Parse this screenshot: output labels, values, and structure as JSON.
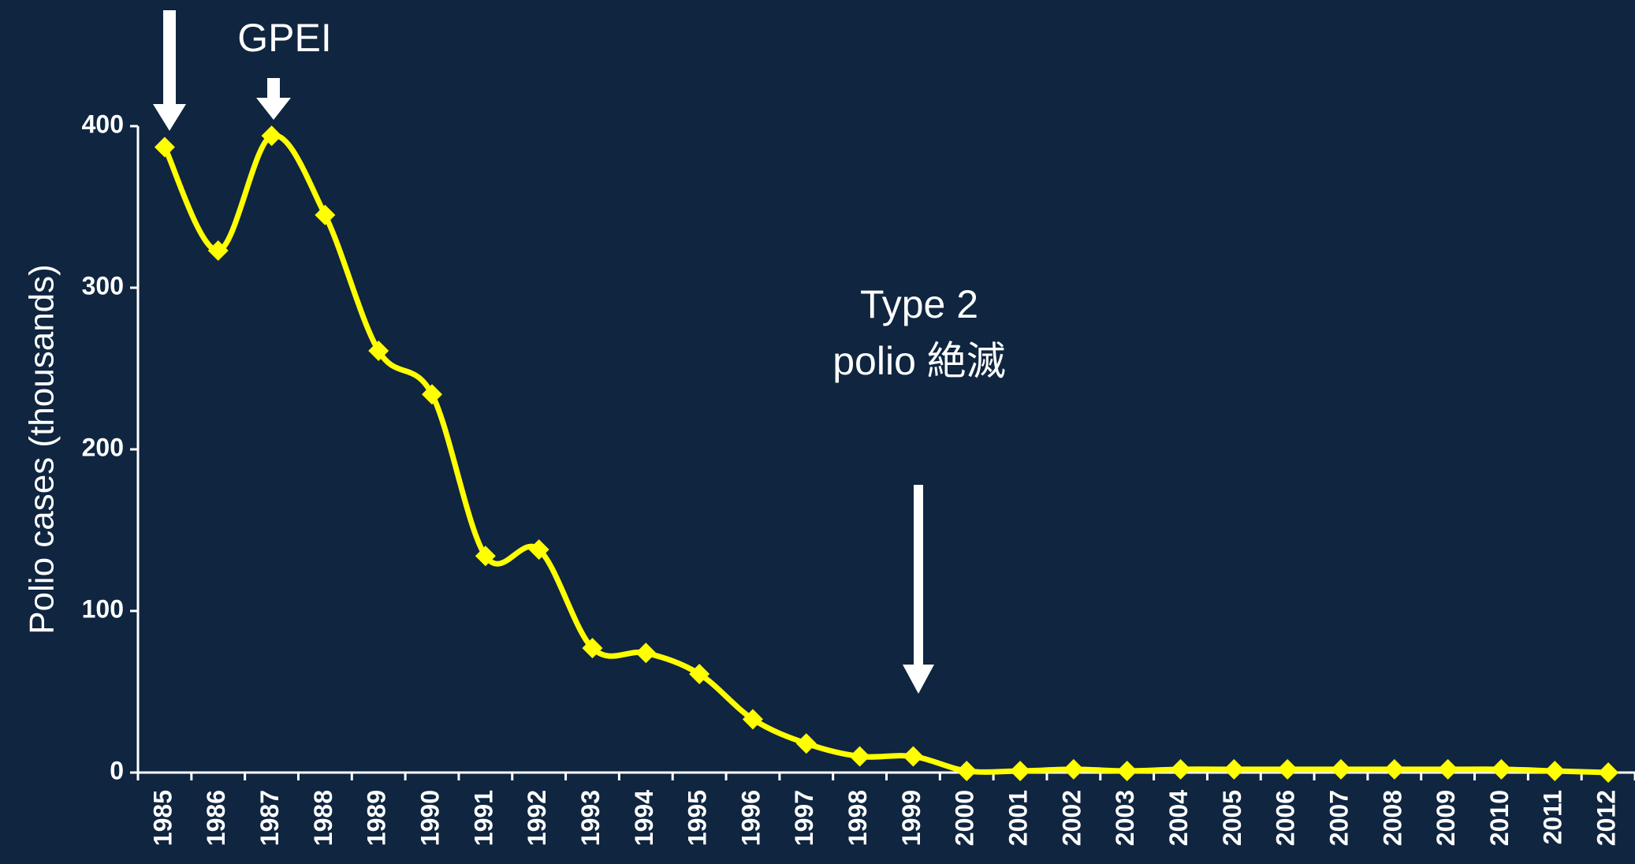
{
  "chart_data": {
    "type": "line",
    "y_label": "Polio cases (thousands)",
    "annotations": [
      "GPEI",
      "Type 2",
      "polio 絶滅"
    ],
    "categories": [
      "1985",
      "1986",
      "1987",
      "1988",
      "1989",
      "1990",
      "1991",
      "1992",
      "1993",
      "1994",
      "1995",
      "1996",
      "1997",
      "1998",
      "1999",
      "2000",
      "2001",
      "2002",
      "2003",
      "2004",
      "2005",
      "2006",
      "2007",
      "2008",
      "2009",
      "2010",
      "2011",
      "2012"
    ],
    "series": [
      {
        "color": "#ffff00",
        "values": [
          387,
          323,
          394,
          345,
          261,
          234,
          134,
          138,
          77,
          74,
          61,
          33,
          18,
          10,
          10,
          1,
          1,
          2,
          1,
          2,
          2,
          2,
          2,
          2,
          2,
          2,
          1,
          0
        ]
      }
    ],
    "ylim": [
      0,
      400
    ],
    "yticks": [
      0,
      100,
      200,
      300,
      400
    ]
  }
}
